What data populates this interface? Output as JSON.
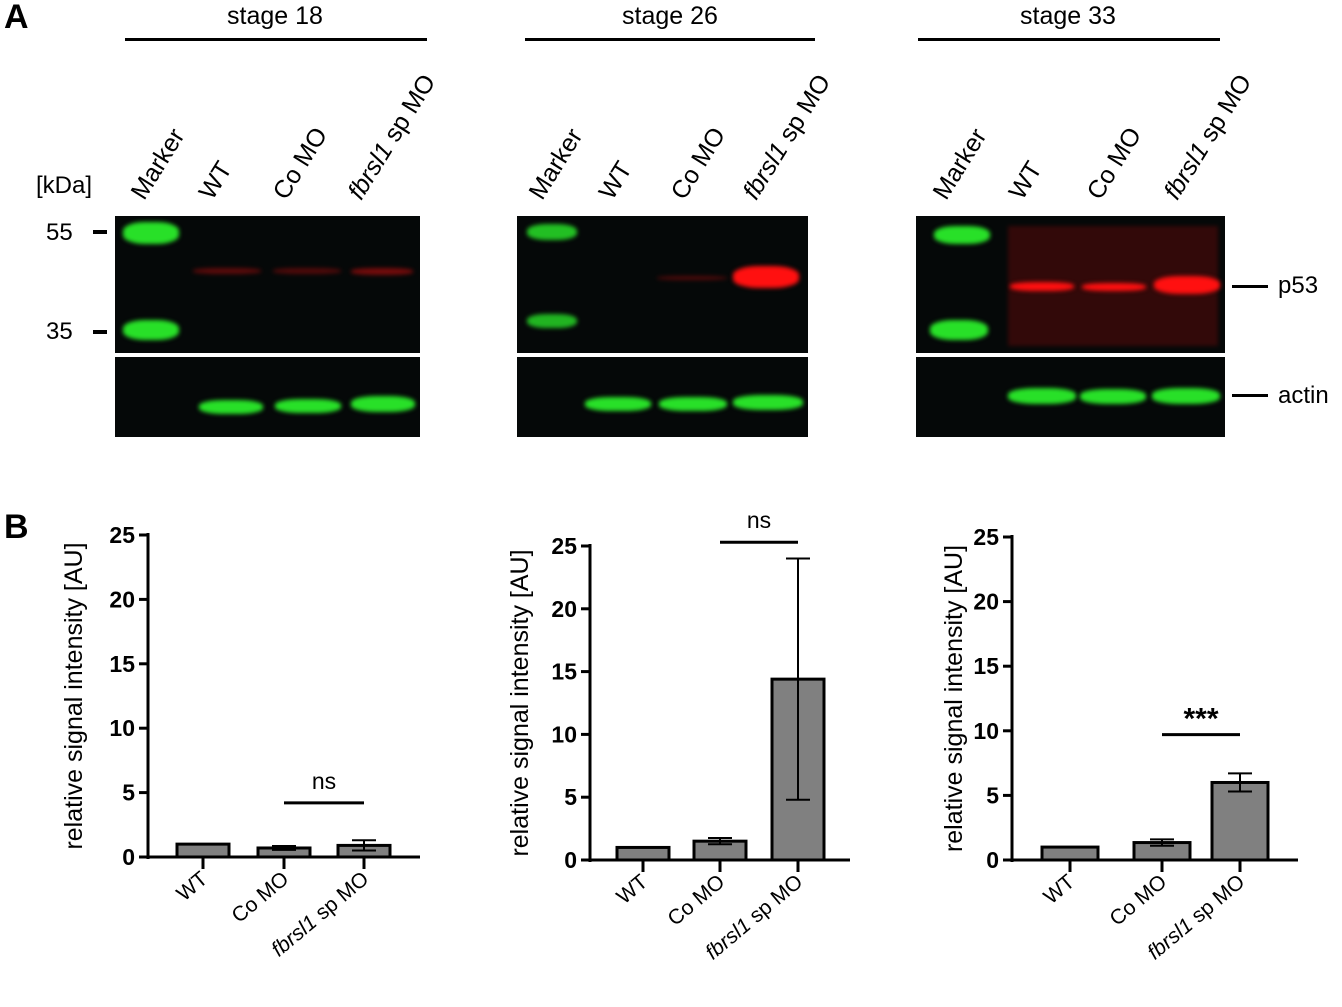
{
  "panel_a": {
    "letter": "A",
    "kda_label": "[kDa]",
    "mw_markers": [
      "55",
      "35"
    ],
    "band_labels": [
      "p53",
      "actin"
    ],
    "stages": [
      {
        "title": "stage 18",
        "lanes": [
          "Marker",
          "WT",
          "Co MO",
          "fbrsl1",
          " sp MO"
        ]
      },
      {
        "title": "stage 26",
        "lanes": [
          "Marker",
          "WT",
          "Co MO",
          "fbrsl1",
          " sp MO"
        ]
      },
      {
        "title": "stage 33",
        "lanes": [
          "Marker",
          "WT",
          "Co MO",
          "fbrsl1",
          " sp MO"
        ]
      }
    ],
    "colors": {
      "marker_green": "#28e028",
      "p53_red": "#ff1010",
      "background": "#050808"
    }
  },
  "panel_b": {
    "letter": "B"
  },
  "chart_data": [
    {
      "type": "bar",
      "categories": [
        "WT",
        "Co MO",
        "fbrsl1 sp MO"
      ],
      "category_italic_part": "fbrsl1",
      "values": [
        1.0,
        0.7,
        0.9
      ],
      "error": [
        0,
        0.15,
        0.4
      ],
      "ylabel": "relative signal intensity [AU]",
      "ylim": [
        0,
        25
      ],
      "yticks": [
        0,
        5,
        10,
        15,
        20,
        25
      ],
      "bar_color": "#808080",
      "significance": {
        "from": "Co MO",
        "to": "fbrsl1 sp MO",
        "label": "ns",
        "level": 4.2
      }
    },
    {
      "type": "bar",
      "categories": [
        "WT",
        "Co MO",
        "fbrsl1 sp MO"
      ],
      "category_italic_part": "fbrsl1",
      "values": [
        1.0,
        1.5,
        14.4
      ],
      "error": [
        0,
        0.25,
        9.6
      ],
      "ylabel": "relative signal intensity [AU]",
      "ylim": [
        0,
        25
      ],
      "yticks": [
        0,
        5,
        10,
        15,
        20,
        25
      ],
      "bar_color": "#808080",
      "significance": {
        "from": "Co MO",
        "to": "fbrsl1 sp MO",
        "label": "ns",
        "level": 25.3
      }
    },
    {
      "type": "bar",
      "categories": [
        "WT",
        "Co MO",
        "fbrsl1 sp MO"
      ],
      "category_italic_part": "fbrsl1",
      "values": [
        1.0,
        1.35,
        6.0
      ],
      "error": [
        0,
        0.25,
        0.7
      ],
      "ylabel": "relative signal intensity [AU]",
      "ylim": [
        0,
        25
      ],
      "yticks": [
        0,
        5,
        10,
        15,
        20,
        25
      ],
      "bar_color": "#808080",
      "significance": {
        "from": "Co MO",
        "to": "fbrsl1 sp MO",
        "label": "***",
        "level": 9.7
      }
    }
  ]
}
